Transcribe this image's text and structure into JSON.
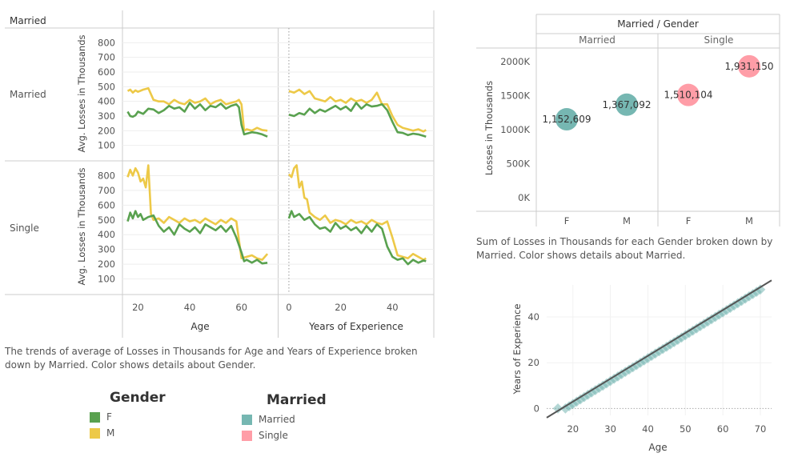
{
  "colors": {
    "F": "#59a14f",
    "M": "#edc948",
    "Married": "#76b7b2",
    "Single": "#ff9da7",
    "grid": "#eeeeee",
    "divider": "#cccccc",
    "text": "#555555",
    "trend": "#555555"
  },
  "chart_data": [
    {
      "type": "line",
      "row_header": "Married",
      "rows": [
        "Married",
        "Single"
      ],
      "columns": [
        {
          "xlabel": "Age",
          "xlim": [
            14,
            74
          ],
          "xticks": [
            20,
            40,
            60
          ]
        },
        {
          "xlabel": "Years of Experience",
          "xlim": [
            -4,
            56
          ],
          "xticks": [
            0,
            20,
            40
          ]
        }
      ],
      "ylabel": "Avg. Losses in Thousands",
      "yticks": [
        100,
        200,
        300,
        400,
        500,
        600,
        700,
        800
      ],
      "ylim": [
        0,
        900
      ],
      "series_names": [
        "F",
        "M"
      ],
      "panels": [
        {
          "row": "Married",
          "col": 0,
          "series": [
            {
              "name": "F",
              "x": [
                16,
                17,
                18,
                19,
                20,
                22,
                24,
                26,
                28,
                30,
                32,
                34,
                36,
                38,
                40,
                42,
                44,
                46,
                48,
                50,
                52,
                54,
                56,
                58,
                59,
                60,
                61,
                62,
                64,
                66,
                68,
                70
              ],
              "y": [
                330,
                300,
                295,
                305,
                330,
                315,
                350,
                345,
                320,
                340,
                370,
                350,
                360,
                330,
                390,
                350,
                380,
                340,
                370,
                360,
                385,
                350,
                370,
                380,
                360,
                240,
                175,
                180,
                190,
                185,
                175,
                160
              ]
            },
            {
              "name": "M",
              "x": [
                16,
                17,
                18,
                19,
                20,
                22,
                24,
                26,
                28,
                30,
                32,
                34,
                36,
                38,
                40,
                42,
                44,
                46,
                48,
                50,
                52,
                54,
                56,
                58,
                59,
                60,
                61,
                62,
                64,
                66,
                68,
                70
              ],
              "y": [
                470,
                480,
                460,
                475,
                465,
                480,
                490,
                410,
                400,
                400,
                380,
                410,
                390,
                380,
                410,
                390,
                400,
                420,
                380,
                400,
                410,
                380,
                390,
                400,
                410,
                380,
                200,
                210,
                200,
                220,
                205,
                200
              ]
            }
          ]
        },
        {
          "row": "Married",
          "col": 1,
          "series": [
            {
              "name": "F",
              "x": [
                0,
                2,
                4,
                6,
                8,
                10,
                12,
                14,
                16,
                18,
                20,
                22,
                24,
                26,
                28,
                30,
                32,
                34,
                36,
                38,
                40,
                42,
                44,
                46,
                48,
                50,
                52,
                53
              ],
              "y": [
                310,
                300,
                320,
                310,
                350,
                320,
                345,
                330,
                350,
                370,
                345,
                365,
                335,
                390,
                350,
                380,
                365,
                370,
                380,
                340,
                260,
                190,
                185,
                170,
                180,
                175,
                165,
                160
              ]
            },
            {
              "name": "M",
              "x": [
                0,
                2,
                4,
                6,
                8,
                10,
                12,
                14,
                16,
                18,
                20,
                22,
                24,
                26,
                28,
                30,
                32,
                34,
                36,
                38,
                40,
                42,
                44,
                46,
                48,
                50,
                52,
                53
              ],
              "y": [
                470,
                460,
                480,
                450,
                470,
                420,
                410,
                400,
                430,
                400,
                410,
                390,
                420,
                400,
                410,
                390,
                410,
                460,
                380,
                380,
                300,
                240,
                220,
                210,
                200,
                210,
                195,
                205
              ]
            }
          ]
        },
        {
          "row": "Single",
          "col": 0,
          "series": [
            {
              "name": "F",
              "x": [
                16,
                17,
                18,
                19,
                20,
                21,
                22,
                24,
                26,
                28,
                30,
                32,
                34,
                36,
                38,
                40,
                42,
                44,
                46,
                48,
                50,
                52,
                54,
                56,
                58,
                60,
                61,
                62,
                64,
                66,
                68,
                70
              ],
              "y": [
                490,
                550,
                510,
                560,
                520,
                540,
                500,
                520,
                530,
                460,
                420,
                450,
                400,
                470,
                440,
                420,
                450,
                410,
                470,
                450,
                430,
                460,
                420,
                460,
                380,
                280,
                220,
                230,
                210,
                230,
                205,
                210
              ]
            },
            {
              "name": "M",
              "x": [
                16,
                17,
                18,
                19,
                20,
                21,
                22,
                23,
                24,
                25,
                26,
                28,
                30,
                32,
                34,
                36,
                38,
                40,
                42,
                44,
                46,
                48,
                50,
                52,
                54,
                56,
                58,
                60,
                62,
                64,
                66,
                68,
                70
              ],
              "y": [
                790,
                840,
                800,
                850,
                820,
                760,
                780,
                720,
                870,
                540,
                500,
                510,
                480,
                520,
                500,
                480,
                510,
                490,
                500,
                480,
                510,
                490,
                470,
                500,
                480,
                510,
                490,
                240,
                250,
                260,
                240,
                230,
                270
              ]
            }
          ]
        },
        {
          "row": "Single",
          "col": 1,
          "series": [
            {
              "name": "F",
              "x": [
                0,
                1,
                2,
                4,
                6,
                8,
                10,
                12,
                14,
                16,
                18,
                20,
                22,
                24,
                26,
                28,
                30,
                32,
                34,
                36,
                38,
                40,
                42,
                44,
                46,
                48,
                50,
                52,
                53
              ],
              "y": [
                510,
                560,
                520,
                540,
                500,
                520,
                470,
                440,
                450,
                420,
                480,
                440,
                460,
                430,
                450,
                410,
                460,
                420,
                470,
                440,
                320,
                250,
                230,
                240,
                200,
                230,
                210,
                225,
                220
              ]
            },
            {
              "name": "M",
              "x": [
                0,
                1,
                2,
                3,
                4,
                5,
                6,
                7,
                8,
                10,
                12,
                14,
                16,
                18,
                20,
                22,
                24,
                26,
                28,
                30,
                32,
                34,
                36,
                38,
                40,
                42,
                44,
                46,
                48,
                50,
                52,
                53
              ],
              "y": [
                810,
                790,
                850,
                870,
                720,
                760,
                650,
                640,
                550,
                520,
                500,
                530,
                480,
                500,
                490,
                470,
                500,
                480,
                490,
                470,
                500,
                480,
                470,
                490,
                380,
                260,
                250,
                240,
                270,
                250,
                230,
                240
              ]
            }
          ]
        }
      ],
      "caption": "The trends of average of Losses in Thousands for Age and Years of Experience broken down by Married.  Color shows details about Gender."
    },
    {
      "type": "scatter",
      "title": "Married / Gender",
      "groups": [
        "Married",
        "Single"
      ],
      "categories": [
        "F",
        "M"
      ],
      "ylabel": "Losses in Thousands",
      "ylim": [
        -200000,
        2200000
      ],
      "ytick_values": [
        0,
        500000,
        1000000,
        1500000,
        2000000
      ],
      "ytick_labels": [
        "0K",
        "500K",
        "1000K",
        "1500K",
        "2000K"
      ],
      "points": [
        {
          "group": "Married",
          "category": "F",
          "value": 1152609,
          "label": "1,152,609",
          "color_key": "Married"
        },
        {
          "group": "Married",
          "category": "M",
          "value": 1367092,
          "label": "1,367,092",
          "color_key": "Married"
        },
        {
          "group": "Single",
          "category": "F",
          "value": 1510104,
          "label": "1,510,104",
          "color_key": "Single"
        },
        {
          "group": "Single",
          "category": "M",
          "value": 1931150,
          "label": "1,931,150",
          "color_key": "Single"
        }
      ],
      "caption": "Sum of Losses in Thousands for each Gender broken down by Married.  Color shows details about Married."
    },
    {
      "type": "scatter",
      "xlabel": "Age",
      "ylabel": "Years of Experience",
      "xlim": [
        13,
        73
      ],
      "ylim": [
        -3,
        54
      ],
      "xticks": [
        20,
        30,
        40,
        50,
        60,
        70
      ],
      "yticks": [
        0,
        20,
        40
      ],
      "points_x": [
        16,
        18,
        19,
        20,
        21,
        22,
        23,
        24,
        25,
        26,
        27,
        28,
        29,
        30,
        31,
        32,
        33,
        34,
        35,
        36,
        37,
        38,
        39,
        40,
        41,
        42,
        43,
        44,
        45,
        46,
        47,
        48,
        49,
        50,
        51,
        52,
        53,
        54,
        55,
        56,
        57,
        58,
        59,
        60,
        61,
        62,
        63,
        64,
        65,
        66,
        67,
        68,
        69,
        70
      ],
      "points_y": [
        0,
        0,
        1,
        2,
        3,
        4,
        5,
        6,
        7,
        8,
        9,
        10,
        11,
        12,
        13,
        14,
        15,
        16,
        17,
        18,
        19,
        20,
        21,
        22,
        23,
        24,
        25,
        26,
        27,
        28,
        29,
        30,
        31,
        32,
        33,
        34,
        35,
        36,
        37,
        38,
        39,
        40,
        41,
        42,
        43,
        44,
        45,
        46,
        47,
        48,
        49,
        50,
        51,
        52
      ],
      "trend": {
        "x": [
          13,
          73
        ],
        "y": [
          -4,
          56
        ]
      }
    }
  ],
  "legends": {
    "gender": {
      "title": "Gender",
      "items": [
        {
          "label": "F",
          "color_key": "F"
        },
        {
          "label": "M",
          "color_key": "M"
        }
      ]
    },
    "married": {
      "title": "Married",
      "items": [
        {
          "label": "Married",
          "color_key": "Married"
        },
        {
          "label": "Single",
          "color_key": "Single"
        }
      ]
    }
  }
}
